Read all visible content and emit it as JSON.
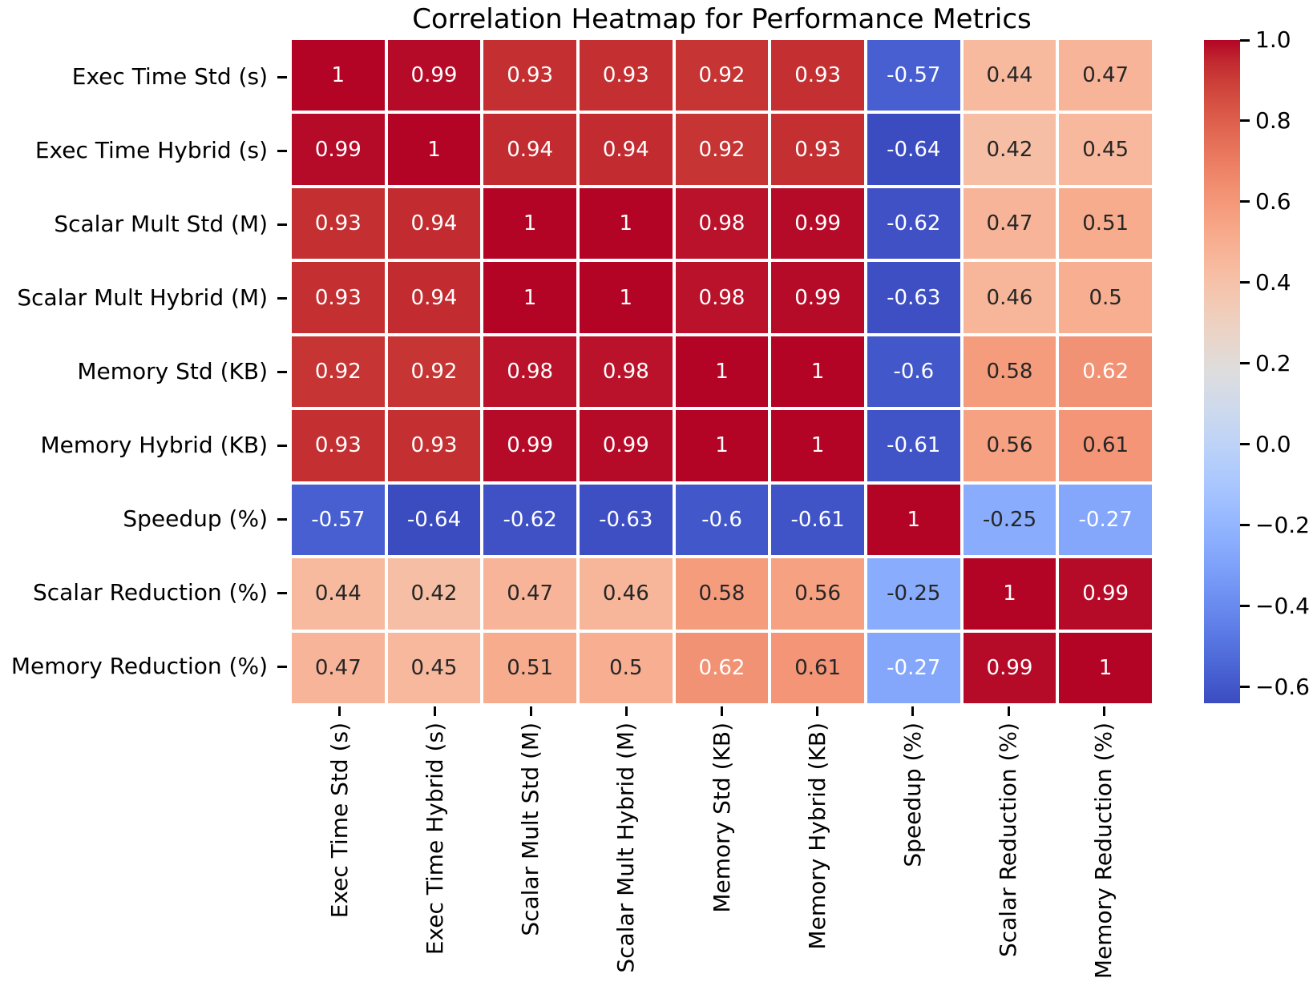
{
  "figure": {
    "title": "Correlation Heatmap for Performance Metrics"
  },
  "chart_data": {
    "type": "heatmap",
    "title": "Correlation Heatmap for Performance Metrics",
    "categories": [
      "Exec Time Std (s)",
      "Exec Time Hybrid (s)",
      "Scalar Mult Std (M)",
      "Scalar Mult Hybrid (M)",
      "Memory Std (KB)",
      "Memory Hybrid (KB)",
      "Speedup (%)",
      "Scalar Reduction (%)",
      "Memory Reduction (%)"
    ],
    "matrix": [
      [
        1,
        0.99,
        0.93,
        0.93,
        0.92,
        0.93,
        -0.57,
        0.44,
        0.47
      ],
      [
        0.99,
        1,
        0.94,
        0.94,
        0.92,
        0.93,
        -0.64,
        0.42,
        0.45
      ],
      [
        0.93,
        0.94,
        1,
        1,
        0.98,
        0.99,
        -0.62,
        0.47,
        0.51
      ],
      [
        0.93,
        0.94,
        1,
        1,
        0.98,
        0.99,
        -0.63,
        0.46,
        0.5
      ],
      [
        0.92,
        0.92,
        0.98,
        0.98,
        1,
        1,
        -0.6,
        0.58,
        0.62
      ],
      [
        0.93,
        0.93,
        0.99,
        0.99,
        1,
        1,
        -0.61,
        0.56,
        0.61
      ],
      [
        -0.57,
        -0.64,
        -0.62,
        -0.63,
        -0.6,
        -0.61,
        1,
        -0.25,
        -0.27
      ],
      [
        0.44,
        0.42,
        0.47,
        0.46,
        0.58,
        0.56,
        -0.25,
        1,
        0.99
      ],
      [
        0.47,
        0.45,
        0.51,
        0.5,
        0.62,
        0.61,
        -0.27,
        0.99,
        1
      ]
    ],
    "vmin": -0.64,
    "vmax": 1.0,
    "colormap": "coolwarm",
    "cell_line_color": "#ffffff",
    "annotation_colors": {
      "on_dark_bg": "#ffffff",
      "on_light_bg": "#262626"
    },
    "colorbar": {
      "tick_values": [
        1.0,
        0.8,
        0.6,
        0.4,
        0.2,
        0.0,
        -0.2,
        -0.4,
        -0.6
      ],
      "tick_labels": [
        "1.0",
        "0.8",
        "0.6",
        "0.4",
        "0.2",
        "0.0",
        "−0.2",
        "−0.4",
        "−0.6"
      ]
    },
    "layout_hints": {
      "legend": "colorbar-right",
      "grid_lines": "white",
      "x_tick_rotation_deg": 90
    }
  }
}
